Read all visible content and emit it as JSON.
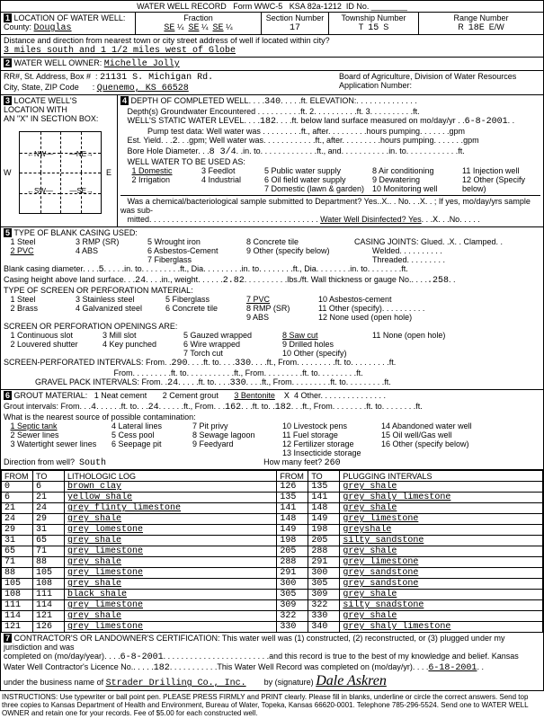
{
  "header": {
    "title": "WATER WELL RECORD",
    "form": "Form WWC-5",
    "ksa": "KSA 82a-1212",
    "id_label": "ID No."
  },
  "loc": {
    "label": "LOCATION OF WATER WELL:",
    "county_label": "County:",
    "county": "Douglas",
    "fraction_label": "Fraction",
    "se1": "SE",
    "q1": "¼",
    "se2": "SE",
    "q2": "¼",
    "se3": "SE",
    "q3": "¼",
    "section_label": "Section Number",
    "section": "17",
    "township_label": "Township Number",
    "township_t": "T",
    "township": "15",
    "township_s": "S",
    "range_label": "Range Number",
    "range_r": "R",
    "range": "18E",
    "range_ew": "E/W",
    "dist_label": "Distance and direction from nearest town or city street address of well if located within city?",
    "dist": "3 miles south and 1 1/2 miles west of Globe"
  },
  "owner": {
    "label": "WATER WELL OWNER:",
    "name": "Michelle Jolly",
    "addr_label": "RR#, St. Address, Box #",
    "addr": "21131 S. Michigan Rd.",
    "csz_label": "City, State, ZIP Code",
    "csz": "Quenemo, KS  66528",
    "board": "Board of Agriculture, Division of Water Resources",
    "app_label": "Application Number:"
  },
  "s3": {
    "label": "LOCATE WELL'S LOCATION WITH",
    "sub": "AN \"X\" IN SECTION BOX:"
  },
  "depth": {
    "label": "DEPTH OF COMPLETED WELL",
    "depth": "340",
    "depth_unit": "ft.",
    "elev_label": "ELEVATION:",
    "depths_enc": "Depth(s) Groundwater Encountered",
    "ft1": "ft.",
    "ft2": "ft.",
    "ft3": "ft.",
    "static_label": "WELL'S STATIC WATER LEVEL",
    "static": "182",
    "static_unit": "ft. below land surface measured on mo/day/yr",
    "static_date": "6-8-2001",
    "pump_label": "Pump test data:  Well water was",
    "after": "ft., after",
    "hrs_pump": "hours pumping",
    "gpm": "gpm",
    "est_label": "Est. Yield",
    "est": "2",
    "est_unit": "gpm;  Well water was",
    "bore_label": "Bore Hole Diameter",
    "bore": "8 3/4",
    "bore_in": "in. to",
    "bore_ft": "ft., and",
    "bore_in2": "in. to",
    "bore_ft2": "ft.",
    "use_label": "WELL WATER TO BE USED AS:",
    "use1": "1 Domestic",
    "use2": "2 Irrigation",
    "use3": "3 Feedlot",
    "use4": "4 Industrial",
    "use5": "5 Public water supply",
    "use6": "6 Oil field water supply",
    "use7": "7 Domestic (lawn & garden)",
    "use8": "8 Air conditioning",
    "use9": "9 Dewatering",
    "use10": "10 Monitoring well",
    "use11": "11 Injection well",
    "use12": "12 Other (Specify below)",
    "chem": "Was a chemical/bacteriological sample submitted to Department? Yes..X.. . No. . .X. . ; If yes, mo/day/yrs sample was sub-",
    "chem2": "mitted",
    "disinfect": "Water Well Disinfected? Yes",
    "disinfect_x": "X",
    "no": "No"
  },
  "casing": {
    "label": "TYPE OF BLANK CASING USED:",
    "c1": "1 Steel",
    "c2": "2 PVC",
    "c3": "3 RMP (SR)",
    "c4": "4 ABS",
    "c5": "5 Wrought iron",
    "c6": "6 Asbestos-Cement",
    "c7": "7 Fiberglass",
    "c8": "8 Concrete tile",
    "c8b": "8 RMP (SR)",
    "c9": "9 Other (specify below)",
    "joints_label": "CASING JOINTS: Glued. .X. . Clamped. .",
    "welded": "Welded",
    "threaded": "Threaded",
    "diam_label": "Blank casing diameter",
    "diam": "5",
    "diam_in": "in. to",
    "diam_ft": "ft., Dia",
    "diam_in2": "in. to",
    "diam_ft2": "ft., Dia",
    "diam_in3": "in. to",
    "diam_ft3": "ft.",
    "height_label": "Casing height above land surface",
    "height": "24",
    "height_in": "in., weight",
    "weight": "2.82",
    "weight_unit": "lbs./ft. Wall thickness or gauge No.",
    "gauge": ".258",
    "screen_label": "TYPE OF SCREEN OR PERFORATION MATERIAL:",
    "s1": "1 Steel",
    "s2": "2 Brass",
    "s3": "3 Stainless steel",
    "s4": "4 Galvanized steel",
    "s5": "5 Fiberglass",
    "s6": "6 Concrete tile",
    "s7": "7 PVC",
    "s8": "8 RMP (SR)",
    "s9": "9 ABS",
    "s10": "10 Asbestos-cement",
    "s11": "11 Other (specify)",
    "s12": "12 None used (open hole)",
    "open_label": "SCREEN OR PERFORATION OPENINGS ARE:",
    "o1": "1 Continuous slot",
    "o2": "2 Louvered shutter",
    "o3": "3 Mill slot",
    "o4": "4 Key punched",
    "o5": "5 Gauzed wrapped",
    "o6": "6 Wire wrapped",
    "o7": "7 Torch cut",
    "o8": "8 Saw cut",
    "o9": "9 Drilled holes",
    "o10": "10 Other (specify)",
    "o11": "11 None (open hole)",
    "perf_label": "SCREEN-PERFORATED INTERVALS: From",
    "perf_from": "290",
    "perf_to_lbl": "ft. to",
    "perf_to": "330",
    "perf_ft": "ft., From",
    "perf_ft2": "ft. to",
    "perf_ft3": "ft.",
    "perf_from2_lbl": "From",
    "perf_ft4": "ft. to",
    "perf_ft5": "ft., From",
    "perf_ft6": "ft. to",
    "perf_ft7": "ft.",
    "gravel_label": "GRAVEL PACK INTERVALS: From",
    "gravel_from": "24",
    "gravel_to": "330"
  },
  "grout": {
    "label": "GROUT MATERIAL:",
    "g1": "1 Neat cement",
    "g2": "2 Cement grout",
    "g3": "3 Bentonite",
    "gx": "X",
    "g4": "4 Other",
    "intervals_label": "Grout intervals: From",
    "gi_from": "4",
    "gi_to_lbl": "ft. to",
    "gi_to": "24",
    "gi_ft": "ft., From",
    "gi_from2": "162",
    "gi_to2": "182",
    "gi_ft2": "ft., From",
    "gi_ft3": "ft. to",
    "gi_ft4": "ft.",
    "contam_label": "What is the nearest source of possible contamination:",
    "cn1": "1 Septic tank",
    "cn2": "2 Sewer lines",
    "cn3": "3 Watertight sewer lines",
    "cn4": "4 Lateral lines",
    "cn5": "5 Cess pool",
    "cn6": "6 Seepage pit",
    "cn7": "7 Pit privy",
    "cn8": "8 Sewage lagoon",
    "cn9": "9 Feedyard",
    "cn10": "10 Livestock pens",
    "cn11": "11 Fuel storage",
    "cn12": "12 Fertilizer storage",
    "cn13": "13 Insecticide storage",
    "cn14": "14 Abandoned water well",
    "cn15": "15 Oil well/Gas well",
    "cn16": "16 Other (specify below)",
    "dir_label": "Direction from well?",
    "dir": "South",
    "feet_label": "How many feet?",
    "feet": "260"
  },
  "log": {
    "h_from": "FROM",
    "h_to": "TO",
    "h_lith": "LITHOLOGIC LOG",
    "h_from2": "FROM",
    "h_to2": "TO",
    "h_plug": "PLUGGING INTERVALS",
    "rows": [
      [
        "0",
        "6",
        "brown clay",
        "126",
        "135",
        "grey shale"
      ],
      [
        "6",
        "21",
        "yellow shale",
        "135",
        "141",
        "grey shaly limestone"
      ],
      [
        "21",
        "24",
        "grey flinty limestone",
        "141",
        "148",
        "grey shale"
      ],
      [
        "24",
        "29",
        "grey shale",
        "148",
        "149",
        "grey limestone"
      ],
      [
        "29",
        "31",
        "grey lomestone",
        "149",
        "198",
        "greyshale"
      ],
      [
        "31",
        "65",
        "grey shale",
        "198",
        "205",
        "silty sandstone"
      ],
      [
        "65",
        "71",
        "grey limestone",
        "205",
        "288",
        "grey shale"
      ],
      [
        "71",
        "88",
        "grey shale",
        "288",
        "291",
        "grey limestone"
      ],
      [
        "88",
        "105",
        "grey limestone",
        "291",
        "300",
        "grey sandstone"
      ],
      [
        "105",
        "108",
        "grey shale",
        "300",
        "305",
        "grey sandstone"
      ],
      [
        "108",
        "111",
        "black shale",
        "305",
        "309",
        "grey shale"
      ],
      [
        "111",
        "114",
        "grey limestone",
        "309",
        "322",
        "silty snadstone"
      ],
      [
        "114",
        "121",
        "grey shale",
        "322",
        "330",
        "grey shale"
      ],
      [
        "121",
        "126",
        "grey limestone",
        "330",
        "340",
        "grey shaly limestone"
      ]
    ]
  },
  "cert": {
    "label": "CONTRACTOR'S OR LANDOWNER'S CERTIFICATION: This water well was (1) constructed, (2) reconstructed, or (3) plugged under my jurisdiction and was",
    "line2": "completed on (mo/day/year)",
    "date": "6-8-2001",
    "line2b": "and this record is true to the best of my knowledge and belief. Kansas",
    "lic_label": "Water Well Contractor's Licence No.",
    "lic": "182",
    "lic2": "This Water Well Record was completed on (mo/day/yr)",
    "comp_date": "6-18-2001",
    "biz_label": "under the business name of",
    "biz": "Strader Drilling Co., Inc.",
    "sig_label": "by (signature)",
    "sig": "Dale Askren"
  },
  "instr": "INSTRUCTIONS: Use typewriter or ball point pen. PLEASE PRESS FIRMLY and PRINT clearly. Please fill in blanks, underline or circle the correct answers. Send top three copies to Kansas Department of Health and Environment, Bureau of Water, Topeka, Kansas 66620-0001. Telephone 785-296-5524. Send one to WATER WELL OWNER and retain one for your records. Fee of $5.00 for each constructed well."
}
